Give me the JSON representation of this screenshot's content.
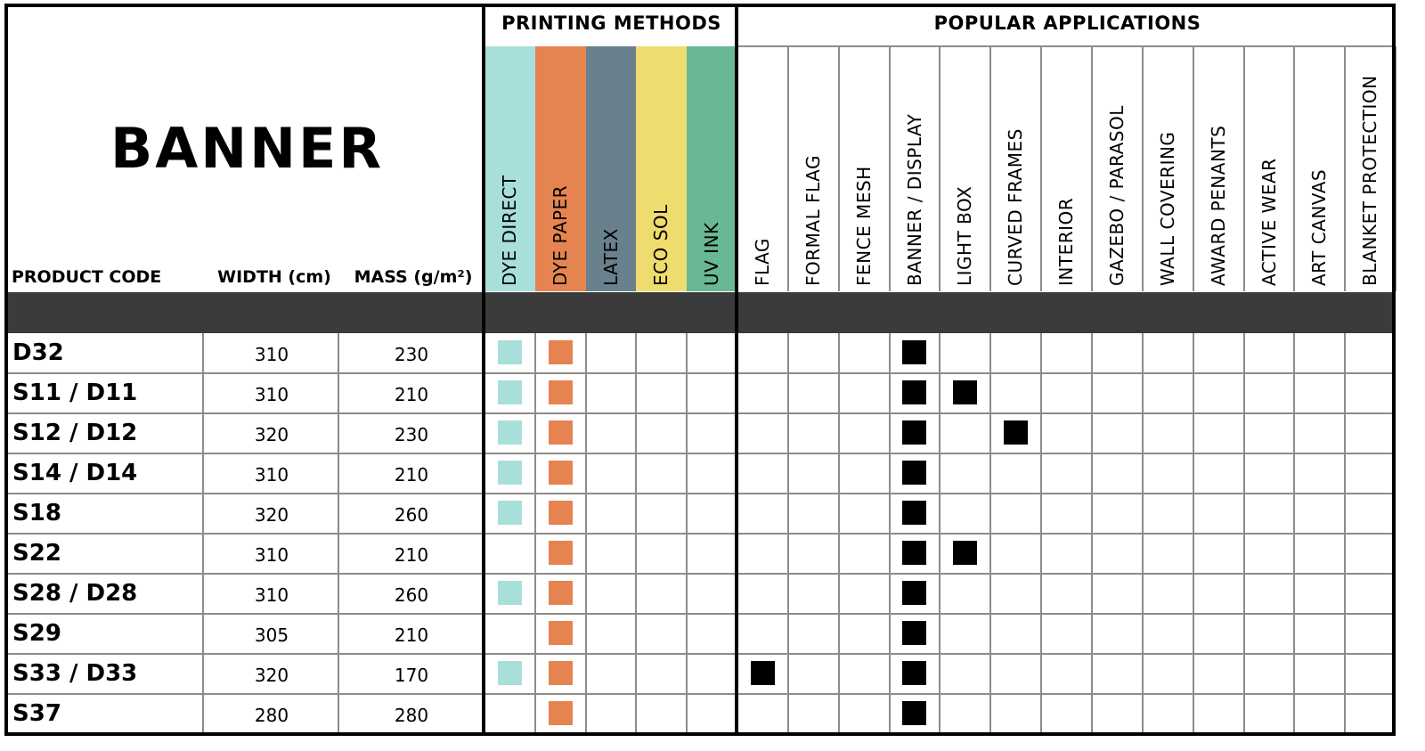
{
  "title": "BANNER",
  "headers": {
    "product_code": "PRODUCT CODE",
    "width": "WIDTH (cm)",
    "mass": "MASS (g/m²)"
  },
  "groups": {
    "printing": "PRINTING METHODS",
    "applications": "POPULAR APPLICATIONS"
  },
  "printing_methods": [
    {
      "label": "DYE DIRECT",
      "color": "#a9dfdb"
    },
    {
      "label": "DYE PAPER",
      "color": "#e58450"
    },
    {
      "label": "LATEX",
      "color": "#69808d"
    },
    {
      "label": "ECO SOL",
      "color": "#efdc6e"
    },
    {
      "label": "UV INK",
      "color": "#67b893"
    }
  ],
  "applications": [
    "FLAG",
    "FORMAL FLAG",
    "FENCE MESH",
    "BANNER / DISPLAY",
    "LIGHT BOX",
    "CURVED FRAMES",
    "INTERIOR",
    "GAZEBO / PARASOL",
    "WALL COVERING",
    "AWARD PENANTS",
    "ACTIVE WEAR",
    "ART CANVAS",
    "BLANKET PROTECTION"
  ],
  "colors": {
    "header_bar": "#3b3b3b",
    "grid": "#8c8c8c",
    "application_mark": "#000000"
  },
  "rows": [
    {
      "code": "D32",
      "width": "310",
      "mass": "230",
      "printing": [
        0,
        1
      ],
      "apps": [
        3
      ]
    },
    {
      "code": "S11 / D11",
      "width": "310",
      "mass": "210",
      "printing": [
        0,
        1
      ],
      "apps": [
        3,
        4
      ]
    },
    {
      "code": "S12 / D12",
      "width": "320",
      "mass": "230",
      "printing": [
        0,
        1
      ],
      "apps": [
        3,
        5
      ]
    },
    {
      "code": "S14 / D14",
      "width": "310",
      "mass": "210",
      "printing": [
        0,
        1
      ],
      "apps": [
        3
      ]
    },
    {
      "code": "S18",
      "width": "320",
      "mass": "260",
      "printing": [
        0,
        1
      ],
      "apps": [
        3
      ]
    },
    {
      "code": "S22",
      "width": "310",
      "mass": "210",
      "printing": [
        1
      ],
      "apps": [
        3,
        4
      ]
    },
    {
      "code": "S28 / D28",
      "width": "310",
      "mass": "260",
      "printing": [
        0,
        1
      ],
      "apps": [
        3
      ]
    },
    {
      "code": "S29",
      "width": "305",
      "mass": "210",
      "printing": [
        1
      ],
      "apps": [
        3
      ]
    },
    {
      "code": "S33 / D33",
      "width": "320",
      "mass": "170",
      "printing": [
        0,
        1
      ],
      "apps": [
        0,
        3
      ]
    },
    {
      "code": "S37",
      "width": "280",
      "mass": "280",
      "printing": [
        1
      ],
      "apps": [
        3
      ]
    }
  ]
}
